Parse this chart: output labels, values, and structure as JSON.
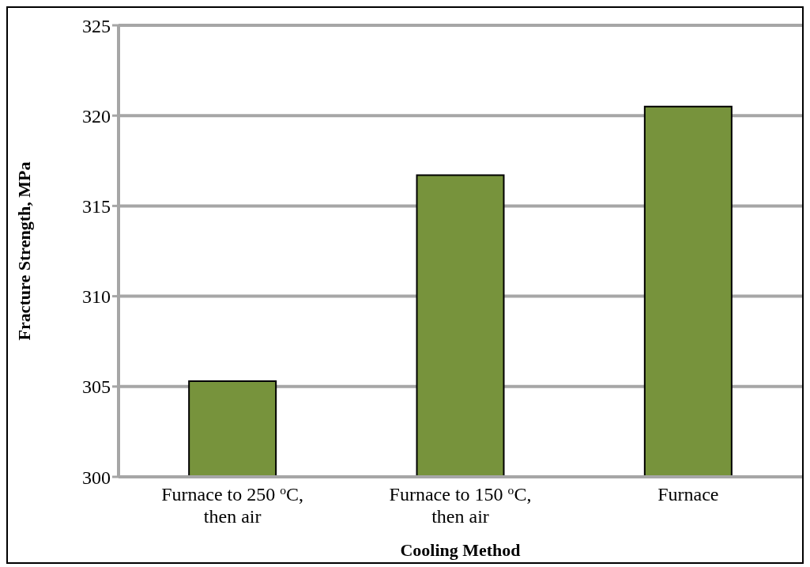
{
  "chart_data": {
    "type": "bar",
    "xlabel": "Cooling  Method",
    "ylabel": "Fracture Strength, MPa",
    "categories": [
      "Furnace to 250 $^{o}$C, then air",
      "Furnace to 150 $^{o}$C, then air",
      "Furnace"
    ],
    "values": [
      305.3,
      316.7,
      320.5
    ],
    "color": "#77933c",
    "ylim": [
      300,
      325
    ],
    "yticks": [
      300,
      305,
      310,
      315,
      320,
      325
    ],
    "grid": "y"
  }
}
